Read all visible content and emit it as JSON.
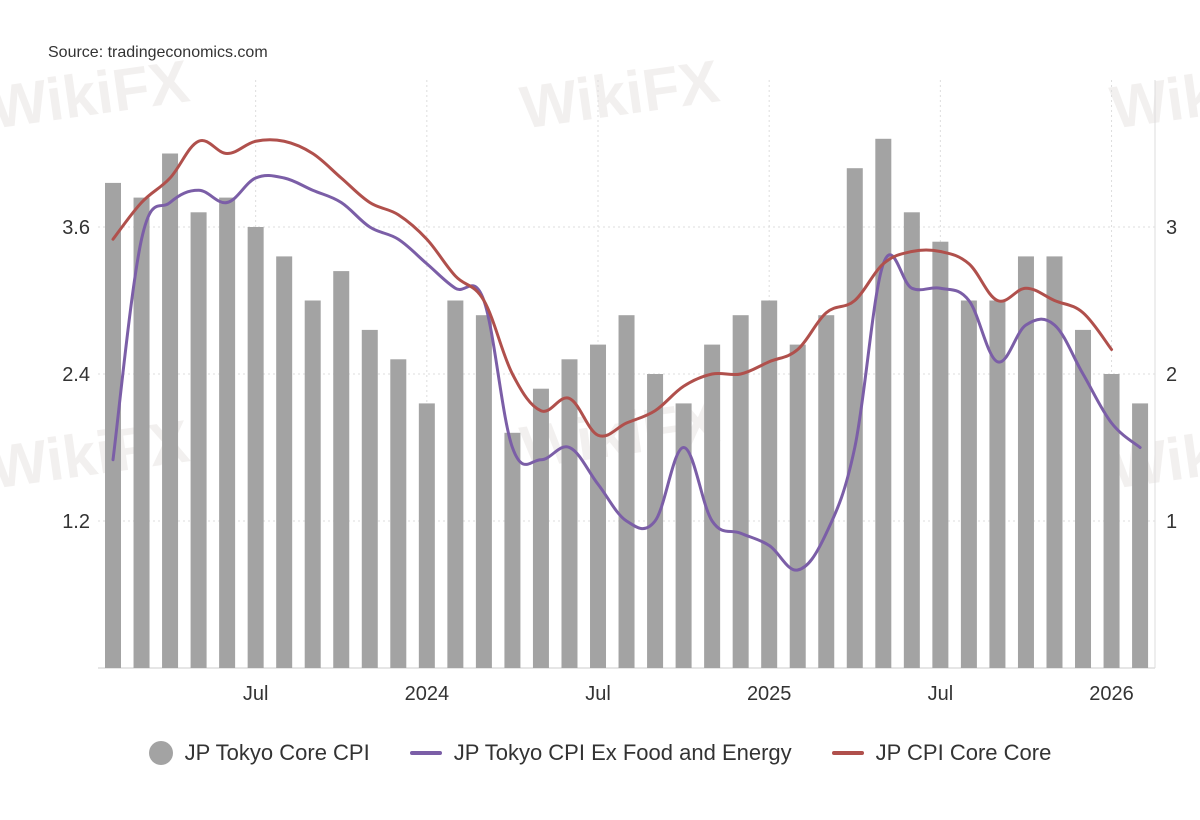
{
  "source": "Source: tradingeconomics.com",
  "watermark": "WikiFX",
  "chart_data": {
    "type": "bar+line",
    "x": [
      "2023-02",
      "2023-03",
      "2023-04",
      "2023-05",
      "2023-06",
      "2023-07",
      "2023-08",
      "2023-09",
      "2023-10",
      "2023-11",
      "2023-12",
      "2024-01",
      "2024-02",
      "2024-03",
      "2024-04",
      "2024-05",
      "2024-06",
      "2024-07",
      "2024-08",
      "2024-09",
      "2024-10",
      "2024-11",
      "2024-12",
      "2025-01",
      "2025-02",
      "2025-03",
      "2025-04",
      "2025-05",
      "2025-06",
      "2025-07",
      "2025-08",
      "2025-09",
      "2025-10",
      "2025-11",
      "2025-12",
      "2026-01",
      "2026-02"
    ],
    "x_tick_labels": [
      {
        "label": "Jul",
        "month": "2023-07"
      },
      {
        "label": "2024",
        "month": "2024-01"
      },
      {
        "label": "Jul",
        "month": "2024-07"
      },
      {
        "label": "2025",
        "month": "2025-01"
      },
      {
        "label": "Jul",
        "month": "2025-07"
      },
      {
        "label": "2026",
        "month": "2026-01"
      }
    ],
    "left_axis": {
      "ticks": [
        "1.2",
        "2.4",
        "3.6"
      ],
      "range": [
        0,
        4.8
      ]
    },
    "right_axis": {
      "ticks": [
        "1",
        "2",
        "3"
      ],
      "range": [
        0,
        3.9
      ]
    },
    "grid": true,
    "legend_position": "bottom",
    "series": [
      {
        "name": "JP Tokyo Core CPI",
        "kind": "bar",
        "axis": "right",
        "color": "#a3a3a3",
        "values": [
          3.3,
          3.2,
          3.5,
          3.1,
          3.2,
          3.0,
          2.8,
          2.5,
          2.7,
          2.3,
          2.1,
          1.8,
          2.5,
          2.4,
          1.6,
          1.9,
          2.1,
          2.2,
          2.4,
          2.0,
          1.8,
          2.2,
          2.4,
          2.5,
          2.2,
          2.4,
          3.4,
          3.6,
          3.1,
          2.9,
          2.5,
          2.5,
          2.8,
          2.8,
          2.3,
          2.0,
          1.8
        ]
      },
      {
        "name": "JP Tokyo CPI Ex Food and Energy",
        "kind": "line",
        "axis": "left",
        "color": "#7b5ea7",
        "values": [
          1.7,
          3.5,
          3.8,
          3.9,
          3.8,
          4.0,
          4.0,
          3.9,
          3.8,
          3.6,
          3.5,
          3.3,
          3.1,
          3.0,
          1.8,
          1.7,
          1.8,
          1.5,
          1.2,
          1.2,
          1.8,
          1.2,
          1.1,
          1.0,
          0.8,
          1.1,
          1.8,
          3.3,
          3.1,
          3.1,
          3.0,
          2.5,
          2.8,
          2.8,
          2.4,
          2.0,
          1.8
        ]
      },
      {
        "name": "JP CPI Core Core",
        "kind": "line",
        "axis": "left",
        "color": "#b0504c",
        "values": [
          3.5,
          3.8,
          4.0,
          4.3,
          4.2,
          4.3,
          4.3,
          4.2,
          4.0,
          3.8,
          3.7,
          3.5,
          3.2,
          3.0,
          2.4,
          2.1,
          2.2,
          1.9,
          2.0,
          2.1,
          2.3,
          2.4,
          2.4,
          2.5,
          2.6,
          2.9,
          3.0,
          3.3,
          3.4,
          3.4,
          3.3,
          3.0,
          3.1,
          3.0,
          2.9,
          2.6,
          null
        ]
      }
    ]
  }
}
